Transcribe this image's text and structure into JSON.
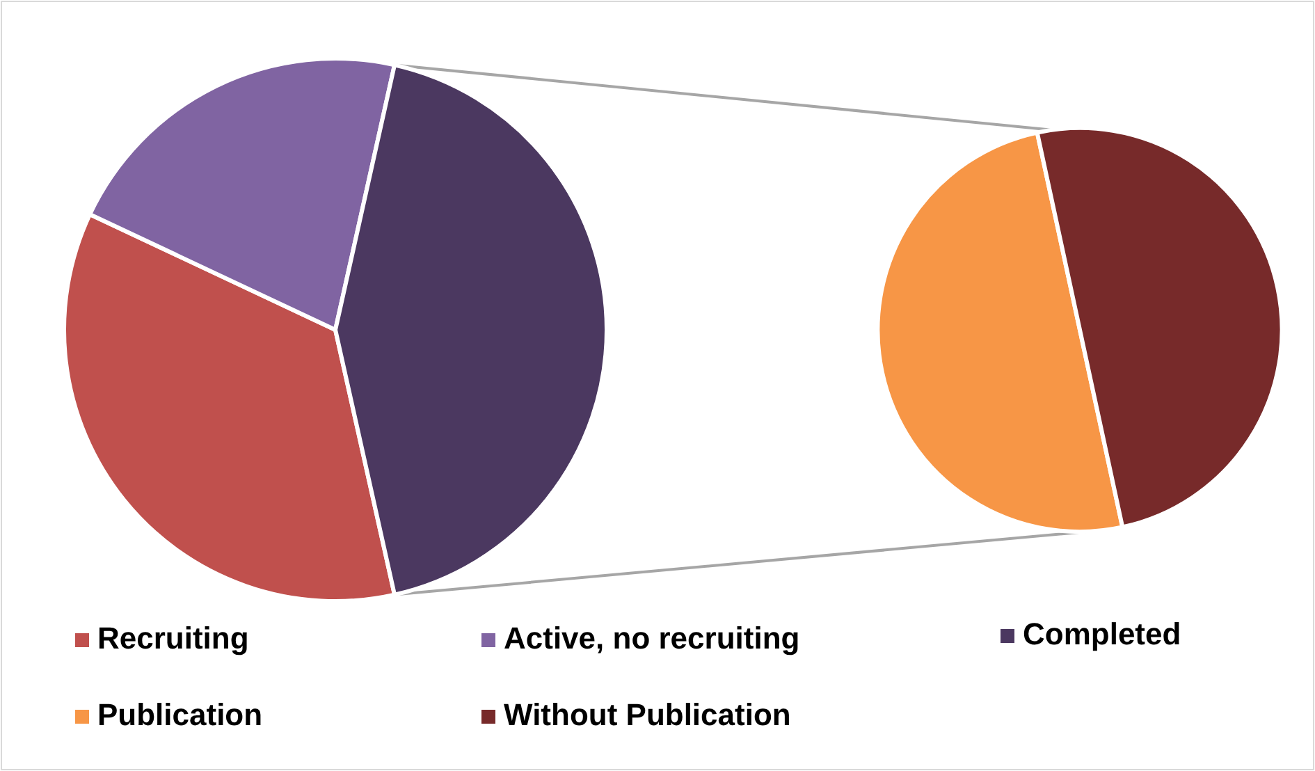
{
  "chart_data": [
    {
      "type": "pie",
      "categories": [
        "Recruiting",
        "Active, no recruiting",
        "Completed"
      ],
      "values": [
        35.5,
        21.5,
        43
      ],
      "colors": [
        "#c0504d",
        "#8064a2",
        "#4b3860"
      ],
      "legend": "bottom"
    },
    {
      "type": "pie",
      "categories": [
        "Publication",
        "Without Publication"
      ],
      "values": [
        50,
        50
      ],
      "colors": [
        "#f79646",
        "#772a2a"
      ],
      "legend": "bottom"
    }
  ]
}
